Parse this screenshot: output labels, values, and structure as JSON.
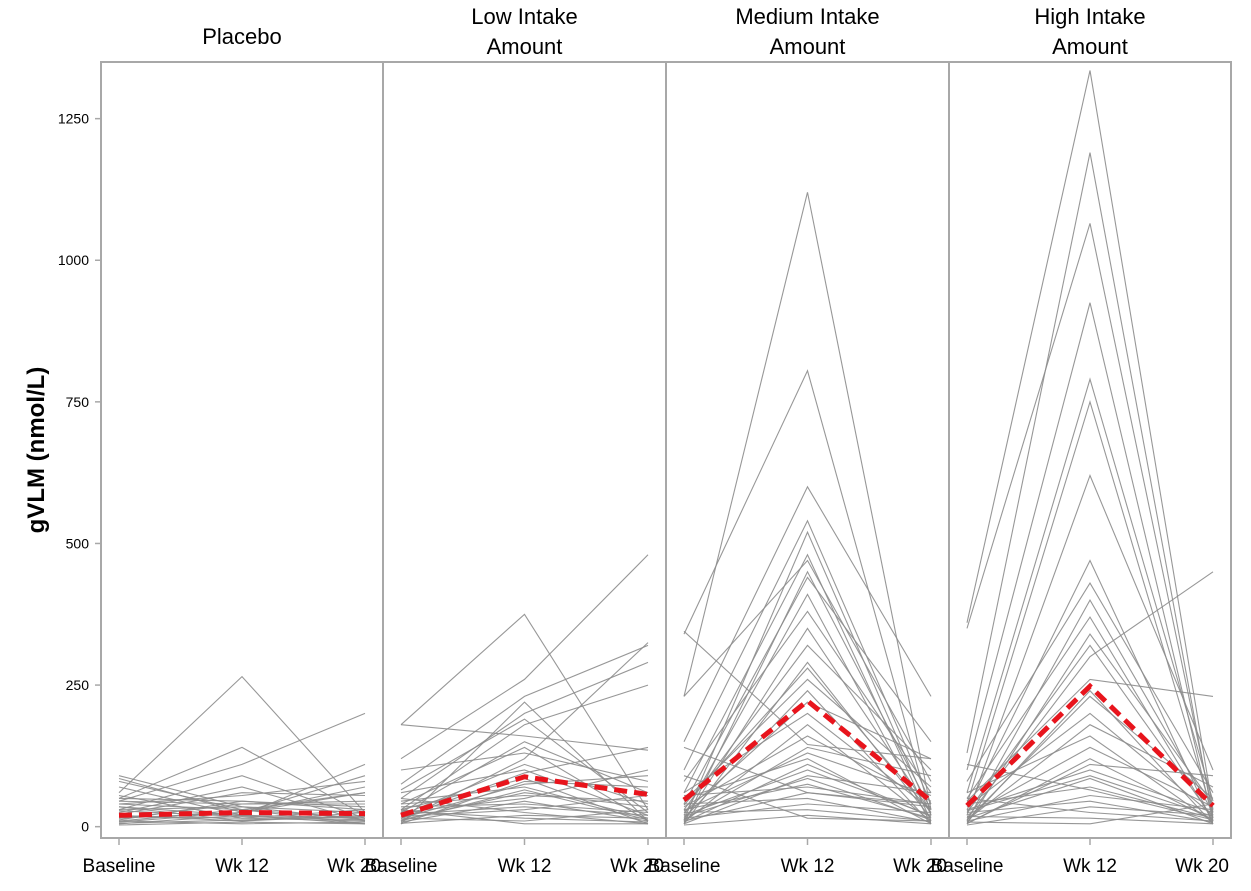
{
  "chart_data": {
    "type": "line",
    "ylabel": "gVLM (nmol/L)",
    "ylim": [
      -20,
      1350
    ],
    "yticks": [
      0,
      250,
      500,
      750,
      1000,
      1250
    ],
    "x": [
      "Baseline",
      "Wk 12",
      "Wk 20"
    ],
    "colors": {
      "individual": "#8c8c8c",
      "mean": "#e8141c",
      "frame": "#a8a8a8"
    },
    "panels": [
      {
        "title": [
          "Placebo"
        ],
        "mean": [
          20,
          25,
          23
        ],
        "individuals": [
          [
            90,
            35,
            12
          ],
          [
            80,
            30,
            15
          ],
          [
            60,
            265,
            25
          ],
          [
            50,
            140,
            20
          ],
          [
            45,
            110,
            200
          ],
          [
            30,
            90,
            15
          ],
          [
            85,
            25,
            60
          ],
          [
            70,
            20,
            110
          ],
          [
            40,
            55,
            80
          ],
          [
            25,
            70,
            10
          ],
          [
            15,
            40,
            45
          ],
          [
            10,
            30,
            60
          ],
          [
            35,
            20,
            5
          ],
          [
            55,
            15,
            30
          ],
          [
            20,
            10,
            20
          ],
          [
            12,
            45,
            35
          ],
          [
            8,
            25,
            90
          ],
          [
            30,
            35,
            25
          ],
          [
            18,
            15,
            10
          ],
          [
            5,
            20,
            15
          ],
          [
            45,
            40,
            40
          ],
          [
            22,
            60,
            55
          ],
          [
            10,
            5,
            8
          ],
          [
            28,
            18,
            12
          ],
          [
            40,
            30,
            5
          ],
          [
            15,
            25,
            70
          ],
          [
            6,
            12,
            18
          ],
          [
            50,
            45,
            30
          ],
          [
            35,
            10,
            25
          ],
          [
            3,
            8,
            5
          ]
        ]
      },
      {
        "title": [
          "Low Intake",
          "Amount"
        ],
        "mean": [
          20,
          88,
          57
        ],
        "individuals": [
          [
            180,
            375,
            30
          ],
          [
            120,
            260,
            480
          ],
          [
            75,
            230,
            320
          ],
          [
            50,
            200,
            290
          ],
          [
            30,
            180,
            250
          ],
          [
            180,
            160,
            135
          ],
          [
            25,
            150,
            60
          ],
          [
            40,
            140,
            10
          ],
          [
            100,
            130,
            80
          ],
          [
            10,
            120,
            325
          ],
          [
            20,
            110,
            40
          ],
          [
            60,
            100,
            20
          ],
          [
            15,
            95,
            140
          ],
          [
            30,
            85,
            5
          ],
          [
            5,
            80,
            70
          ],
          [
            45,
            70,
            15
          ],
          [
            12,
            60,
            35
          ],
          [
            25,
            50,
            100
          ],
          [
            8,
            45,
            10
          ],
          [
            35,
            40,
            25
          ],
          [
            18,
            30,
            55
          ],
          [
            50,
            25,
            5
          ],
          [
            6,
            20,
            15
          ],
          [
            28,
            15,
            8
          ],
          [
            15,
            10,
            30
          ],
          [
            40,
            55,
            45
          ],
          [
            22,
            35,
            20
          ],
          [
            10,
            65,
            12
          ],
          [
            65,
            190,
            25
          ],
          [
            5,
            220,
            10
          ],
          [
            15,
            75,
            90
          ],
          [
            30,
            5,
            5
          ]
        ]
      },
      {
        "title": [
          "Medium Intake",
          "Amount"
        ],
        "mean": [
          47,
          222,
          45
        ],
        "individuals": [
          [
            230,
            1120,
            30
          ],
          [
            340,
            805,
            20
          ],
          [
            150,
            600,
            230
          ],
          [
            100,
            540,
            40
          ],
          [
            60,
            480,
            10
          ],
          [
            230,
            470,
            80
          ],
          [
            40,
            440,
            150
          ],
          [
            20,
            410,
            5
          ],
          [
            80,
            380,
            60
          ],
          [
            10,
            350,
            25
          ],
          [
            30,
            320,
            100
          ],
          [
            5,
            290,
            15
          ],
          [
            45,
            260,
            70
          ],
          [
            15,
            240,
            5
          ],
          [
            25,
            220,
            120
          ],
          [
            60,
            200,
            30
          ],
          [
            8,
            180,
            10
          ],
          [
            35,
            160,
            45
          ],
          [
            12,
            140,
            90
          ],
          [
            50,
            120,
            5
          ],
          [
            20,
            100,
            20
          ],
          [
            5,
            90,
            60
          ],
          [
            30,
            75,
            15
          ],
          [
            10,
            60,
            35
          ],
          [
            40,
            50,
            8
          ],
          [
            15,
            40,
            25
          ],
          [
            25,
            30,
            10
          ],
          [
            3,
            20,
            5
          ],
          [
            55,
            70,
            40
          ],
          [
            18,
            85,
            12
          ],
          [
            8,
            110,
            18
          ],
          [
            28,
            130,
            55
          ],
          [
            140,
            60,
            40
          ],
          [
            90,
            15,
            10
          ],
          [
            345,
            145,
            120
          ],
          [
            5,
            450,
            30
          ],
          [
            12,
            520,
            20
          ],
          [
            38,
            280,
            25
          ]
        ]
      },
      {
        "title": [
          "High Intake",
          "Amount"
        ],
        "mean": [
          37,
          248,
          37
        ],
        "individuals": [
          [
            360,
            1335,
            30
          ],
          [
            130,
            1190,
            15
          ],
          [
            350,
            1065,
            25
          ],
          [
            100,
            925,
            10
          ],
          [
            60,
            790,
            45
          ],
          [
            40,
            750,
            20
          ],
          [
            20,
            620,
            100
          ],
          [
            30,
            470,
            5
          ],
          [
            80,
            430,
            60
          ],
          [
            10,
            400,
            25
          ],
          [
            50,
            370,
            10
          ],
          [
            5,
            340,
            40
          ],
          [
            25,
            320,
            15
          ],
          [
            15,
            300,
            450
          ],
          [
            45,
            260,
            230
          ],
          [
            8,
            240,
            5
          ],
          [
            35,
            200,
            20
          ],
          [
            12,
            180,
            70
          ],
          [
            60,
            160,
            8
          ],
          [
            20,
            140,
            35
          ],
          [
            5,
            120,
            12
          ],
          [
            30,
            100,
            25
          ],
          [
            15,
            85,
            5
          ],
          [
            40,
            70,
            15
          ],
          [
            10,
            55,
            30
          ],
          [
            25,
            45,
            8
          ],
          [
            3,
            35,
            20
          ],
          [
            50,
            25,
            10
          ],
          [
            18,
            15,
            5
          ],
          [
            8,
            5,
            40
          ],
          [
            28,
            90,
            18
          ],
          [
            110,
            65,
            12
          ],
          [
            6,
            110,
            90
          ],
          [
            12,
            230,
            50
          ]
        ]
      }
    ]
  }
}
